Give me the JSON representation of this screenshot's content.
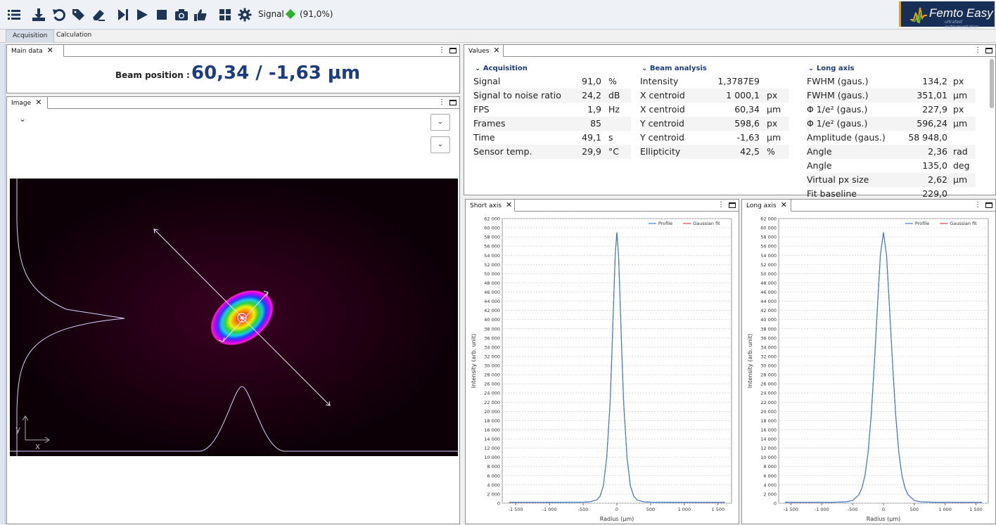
{
  "toolbar": {
    "icons": [
      "list-icon",
      "download-icon",
      "undo-icon",
      "tags-icon",
      "eraser-icon",
      "step-icon",
      "play-icon",
      "stop-icon",
      "camera-icon",
      "thumbs-up-icon",
      "grid-icon",
      "gear-icon"
    ],
    "signal_label": "Signal",
    "signal_value": "(91,0%)",
    "signal_color": "#2fb32f",
    "logo_text": "Femto Easy",
    "logo_sub": "ultrafast instrumentation"
  },
  "main_tabs": [
    {
      "label": "Acquisition",
      "active": true
    },
    {
      "label": "Calculation",
      "active": false
    }
  ],
  "main_data": {
    "tab": "Main data",
    "beam_label": "Beam position :",
    "beam_value": "60,34 / -1,63 µm"
  },
  "image_panel": {
    "tab": "Image",
    "chevron": "⌄",
    "axis_x": "x",
    "axis_y": "y"
  },
  "values_panel": {
    "tab": "Values",
    "groups": [
      {
        "title": "Acquisition",
        "rows": [
          {
            "label": "Signal",
            "value": "91,0",
            "unit": "%"
          },
          {
            "label": "Signal to noise ratio",
            "value": "24,2",
            "unit": "dB"
          },
          {
            "label": "FPS",
            "value": "1,9",
            "unit": "Hz"
          },
          {
            "label": "Frames",
            "value": "85",
            "unit": ""
          },
          {
            "label": "Time",
            "value": "49,1",
            "unit": "s"
          },
          {
            "label": "Sensor temp.",
            "value": "29,9",
            "unit": "°C"
          }
        ]
      },
      {
        "title": "Beam analysis",
        "rows": [
          {
            "label": "Intensity",
            "value": "1,3787E9",
            "unit": ""
          },
          {
            "label": "X centroid",
            "value": "1 000,1",
            "unit": "px"
          },
          {
            "label": "X centroid",
            "value": "60,34",
            "unit": "µm"
          },
          {
            "label": "Y centroid",
            "value": "598,6",
            "unit": "px"
          },
          {
            "label": "Y centroid",
            "value": "-1,63",
            "unit": "µm"
          },
          {
            "label": "Ellipticity",
            "value": "42,5",
            "unit": "%"
          }
        ]
      },
      {
        "title": "Long axis",
        "rows": [
          {
            "label": "FWHM (gaus.)",
            "value": "134,2",
            "unit": "px"
          },
          {
            "label": "FWHM (gaus.)",
            "value": "351,01",
            "unit": "µm"
          },
          {
            "label": "Φ 1/e² (gaus.)",
            "value": "227,9",
            "unit": "px"
          },
          {
            "label": "Φ 1/e² (gaus.)",
            "value": "596,24",
            "unit": "µm"
          },
          {
            "label": "Amplitude (gaus.)",
            "value": "58 948,0",
            "unit": ""
          },
          {
            "label": "Angle",
            "value": "2,36",
            "unit": "rad"
          },
          {
            "label": "Angle",
            "value": "135,0",
            "unit": "deg"
          },
          {
            "label": "Virtual px size",
            "value": "2,62",
            "unit": "µm"
          },
          {
            "label": "Fit baseline",
            "value": "229,0",
            "unit": ""
          }
        ]
      }
    ]
  },
  "chart_data": [
    {
      "type": "line",
      "tab": "Short axis",
      "xlabel": "Radius (µm)",
      "ylabel": "Intensity (arb. unit)",
      "xlim": [
        -1700,
        1700
      ],
      "ylim": [
        0,
        62000
      ],
      "x_ticks": [
        -1500,
        -1000,
        -500,
        0,
        500,
        1000,
        1500
      ],
      "x_tick_labels": [
        "-1 500",
        "-1 000",
        "-500",
        "0",
        "500",
        "1 000",
        "1 500"
      ],
      "y_ticks": [
        0,
        2000,
        4000,
        6000,
        8000,
        10000,
        12000,
        14000,
        16000,
        18000,
        20000,
        22000,
        24000,
        26000,
        28000,
        30000,
        32000,
        34000,
        36000,
        38000,
        40000,
        42000,
        44000,
        46000,
        48000,
        50000,
        52000,
        54000,
        56000,
        58000,
        60000,
        62000
      ],
      "y_tick_labels": [
        "0",
        "2 000",
        "4 000",
        "6 000",
        "8 000",
        "10 000",
        "12 000",
        "14 000",
        "16 000",
        "18 000",
        "20 000",
        "22 000",
        "24 000",
        "26 000",
        "28 000",
        "30 000",
        "32 000",
        "34 000",
        "36 000",
        "38 000",
        "40 000",
        "42 000",
        "44 000",
        "46 000",
        "48 000",
        "50 000",
        "52 000",
        "54 000",
        "56 000",
        "58 000",
        "60 000",
        "62 000"
      ],
      "grid": true,
      "legend_position": "top-right",
      "series": [
        {
          "name": "Profile",
          "color": "#3a7ed0",
          "x": [
            -1600,
            -1200,
            -800,
            -500,
            -400,
            -300,
            -250,
            -200,
            -150,
            -100,
            -75,
            -50,
            -25,
            0,
            25,
            50,
            75,
            100,
            150,
            200,
            250,
            300,
            400,
            500,
            800,
            1200,
            1600
          ],
          "y": [
            200,
            200,
            210,
            230,
            300,
            700,
            1500,
            3800,
            10000,
            22000,
            32000,
            43000,
            54000,
            59000,
            54000,
            43000,
            32000,
            22000,
            10000,
            3800,
            1500,
            700,
            300,
            230,
            210,
            200,
            200
          ]
        },
        {
          "name": "Gaussian fit",
          "color": "#e0403a",
          "x": [
            -1600,
            -1200,
            -800,
            -500,
            -400,
            -300,
            -250,
            -200,
            -150,
            -100,
            -75,
            -50,
            -25,
            0,
            25,
            50,
            75,
            100,
            150,
            200,
            250,
            300,
            400,
            500,
            800,
            1200,
            1600
          ],
          "y": [
            200,
            200,
            210,
            230,
            300,
            700,
            1500,
            3800,
            10000,
            22000,
            32000,
            43000,
            54000,
            59000,
            54000,
            43000,
            32000,
            22000,
            10000,
            3800,
            1500,
            700,
            300,
            230,
            210,
            200,
            200
          ]
        }
      ]
    },
    {
      "type": "line",
      "tab": "Long axis",
      "xlabel": "Radius (µm)",
      "ylabel": "Intensity (arb. unit)",
      "xlim": [
        -1700,
        1700
      ],
      "ylim": [
        0,
        62000
      ],
      "x_ticks": [
        -1500,
        -1000,
        -500,
        0,
        500,
        1000,
        1500
      ],
      "x_tick_labels": [
        "-1 500",
        "-1 000",
        "-500",
        "0",
        "500",
        "1 000",
        "1 500"
      ],
      "y_ticks": [
        0,
        2000,
        4000,
        6000,
        8000,
        10000,
        12000,
        14000,
        16000,
        18000,
        20000,
        22000,
        24000,
        26000,
        28000,
        30000,
        32000,
        34000,
        36000,
        38000,
        40000,
        42000,
        44000,
        46000,
        48000,
        50000,
        52000,
        54000,
        56000,
        58000,
        60000,
        62000
      ],
      "y_tick_labels": [
        "0",
        "2 000",
        "4 000",
        "6 000",
        "8 000",
        "10 000",
        "12 000",
        "14 000",
        "16 000",
        "18 000",
        "20 000",
        "22 000",
        "24 000",
        "26 000",
        "28 000",
        "30 000",
        "32 000",
        "34 000",
        "36 000",
        "38 000",
        "40 000",
        "42 000",
        "44 000",
        "46 000",
        "48 000",
        "50 000",
        "52 000",
        "54 000",
        "56 000",
        "58 000",
        "60 000",
        "62 000"
      ],
      "grid": true,
      "legend_position": "top-right",
      "series": [
        {
          "name": "Profile",
          "color": "#3a7ed0",
          "x": [
            -1600,
            -1200,
            -800,
            -600,
            -500,
            -400,
            -350,
            -300,
            -250,
            -200,
            -150,
            -100,
            -50,
            0,
            50,
            100,
            150,
            200,
            250,
            300,
            350,
            400,
            500,
            600,
            800,
            1200,
            1600
          ],
          "y": [
            200,
            200,
            220,
            300,
            600,
            1800,
            3300,
            6000,
            11000,
            19000,
            30000,
            42000,
            54000,
            59000,
            54000,
            42000,
            30000,
            19000,
            11000,
            6000,
            3300,
            1800,
            600,
            300,
            220,
            200,
            200
          ]
        },
        {
          "name": "Gaussian fit",
          "color": "#e0403a",
          "x": [
            -1600,
            -1200,
            -800,
            -600,
            -500,
            -400,
            -350,
            -300,
            -250,
            -200,
            -150,
            -100,
            -50,
            0,
            50,
            100,
            150,
            200,
            250,
            300,
            350,
            400,
            500,
            600,
            800,
            1200,
            1600
          ],
          "y": [
            200,
            200,
            220,
            300,
            600,
            1800,
            3300,
            6000,
            11000,
            19000,
            30000,
            42000,
            54000,
            59000,
            54000,
            42000,
            30000,
            19000,
            11000,
            6000,
            3300,
            1800,
            600,
            300,
            220,
            200,
            200
          ]
        }
      ]
    }
  ]
}
